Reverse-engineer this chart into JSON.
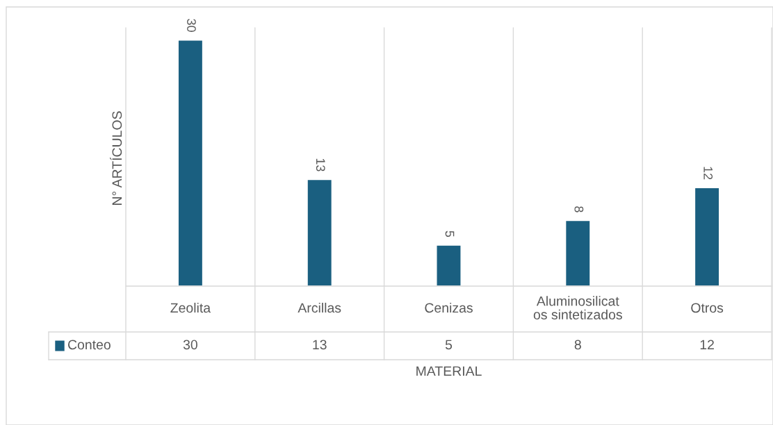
{
  "chart_data": {
    "type": "bar",
    "xlabel": "MATERIAL",
    "ylabel": "N° ARTÍCULOS",
    "categories": [
      "Zeolita",
      "Arcillas",
      "Cenizas",
      "Aluminosilicat\nos sintetizados",
      "Otros"
    ],
    "series": [
      {
        "name": "Conteo",
        "color": "#1a5f80",
        "values": [
          30,
          13,
          5,
          8,
          12
        ],
        "value_labels": [
          "30",
          "13",
          "5",
          "8",
          "12"
        ]
      }
    ],
    "annotations": [
      "30",
      "13",
      "5",
      "8",
      "12"
    ],
    "grid": "x",
    "legend": "bottom"
  }
}
